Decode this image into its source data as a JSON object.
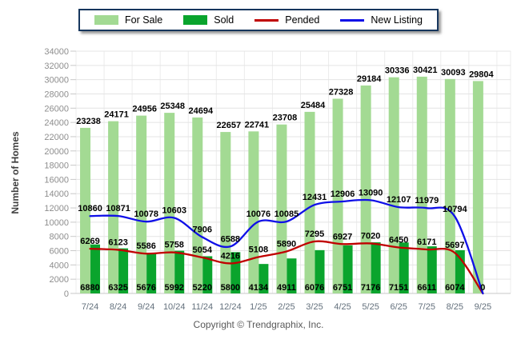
{
  "header": {
    "y_axis_title": "Number of Homes"
  },
  "footer": {
    "copyright": "Copyright © Trendgraphix, Inc."
  },
  "legend": {
    "items": [
      {
        "label": "For Sale",
        "swatch": "bar",
        "color": "#A3DA93"
      },
      {
        "label": "Sold",
        "swatch": "bar",
        "color": "#0AA42D"
      },
      {
        "label": "Pended",
        "swatch": "line",
        "color": "#C00000"
      },
      {
        "label": "New Listing",
        "swatch": "line",
        "color": "#0F0FE8"
      }
    ]
  },
  "chart_data": {
    "type": "combo_bar_line",
    "title": "",
    "xlabel": "",
    "ylabel": "Number of Homes",
    "ylim": [
      0,
      34000
    ],
    "ytick_step": 2000,
    "grid": true,
    "legend_position": "top",
    "categories": [
      "7/24",
      "8/24",
      "9/24",
      "10/24",
      "11/24",
      "12/24",
      "1/25",
      "2/25",
      "3/25",
      "4/25",
      "5/25",
      "6/25",
      "7/25",
      "8/25",
      "9/25"
    ],
    "series": [
      {
        "name": "For Sale",
        "type": "bar",
        "color": "#A3DA93",
        "values": [
          23238,
          24171,
          24956,
          25348,
          24694,
          22657,
          22741,
          23708,
          25484,
          27328,
          29184,
          30336,
          30421,
          30093,
          29804
        ]
      },
      {
        "name": "Sold",
        "type": "bar",
        "color": "#0AA42D",
        "values": [
          6880,
          6325,
          5676,
          5992,
          5220,
          5800,
          4134,
          4911,
          6076,
          6751,
          7176,
          7151,
          6611,
          6074,
          0
        ]
      },
      {
        "name": "Pended",
        "type": "line",
        "color": "#C00000",
        "values": [
          6269,
          6123,
          5586,
          5758,
          5054,
          4216,
          5108,
          5890,
          7295,
          6927,
          7020,
          6450,
          6171,
          5697,
          0
        ]
      },
      {
        "name": "New Listing",
        "type": "line",
        "color": "#0F0FE8",
        "values": [
          10860,
          10871,
          10078,
          10603,
          7906,
          6588,
          10076,
          10085,
          12431,
          12906,
          13090,
          12107,
          11979,
          10794,
          0
        ]
      }
    ],
    "colors": {
      "gridline": "#E4E4E4",
      "vertical_gridline": "#ECECEC",
      "axis_line": "#C9C9C9",
      "tick_dash": "#C9C9C9",
      "y_tick_label": "#8E8E8E",
      "x_tick_label": "#63707C",
      "value_label": "#000000"
    }
  }
}
